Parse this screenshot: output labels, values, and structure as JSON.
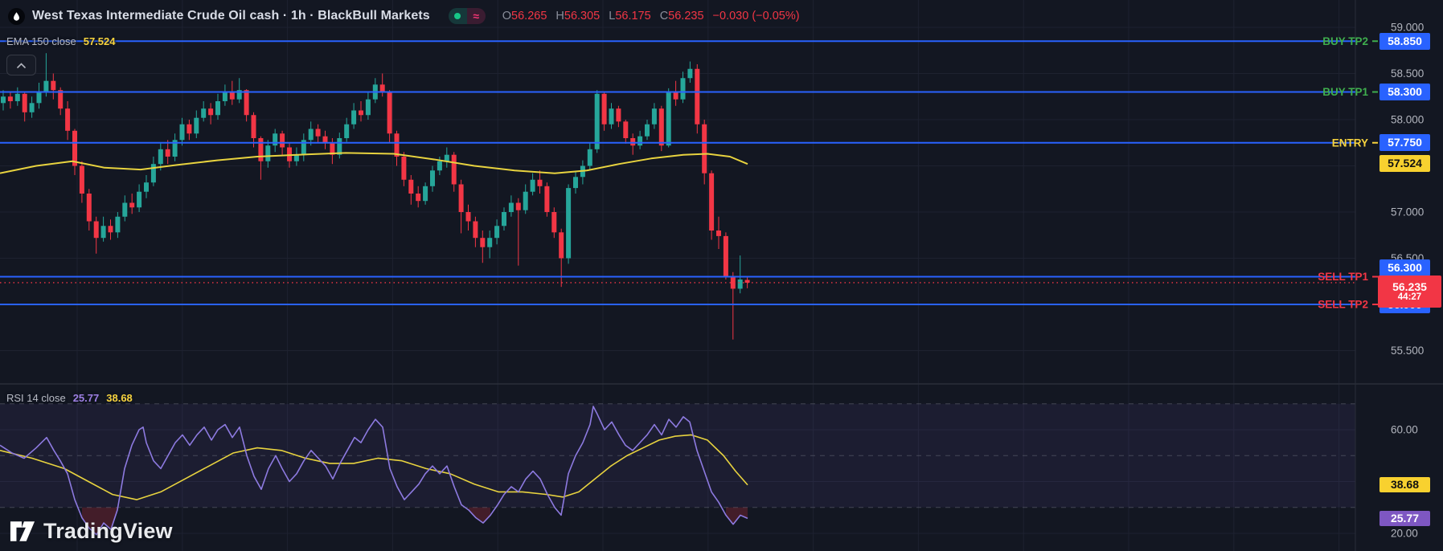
{
  "header": {
    "title": "West Texas Intermediate Crude Oil cash · 1h · BlackBull Markets",
    "market_open_dot": "green",
    "approx_symbol": "≈",
    "ohlc": {
      "o_label": "O",
      "o": "56.265",
      "h_label": "H",
      "h": "56.305",
      "l_label": "L",
      "l": "56.175",
      "c_label": "C",
      "c": "56.235",
      "change": "−0.030 (−0.05%)"
    }
  },
  "ema_legend": {
    "name": "EMA 150 close",
    "value": "57.524"
  },
  "rsi_legend": {
    "name": "RSI 14 close",
    "rsi_value": "25.77",
    "ma_value": "38.68"
  },
  "logo": {
    "text": "TradingView"
  },
  "price_axis": {
    "ticks": [
      {
        "text": "59.000",
        "price": 59.0
      },
      {
        "text": "58.500",
        "price": 58.5
      },
      {
        "text": "58.000",
        "price": 58.0
      },
      {
        "text": "57.000",
        "price": 57.0
      },
      {
        "text": "56.500",
        "price": 56.5
      },
      {
        "text": "55.500",
        "price": 55.5
      }
    ]
  },
  "rsi_axis": {
    "ticks": [
      {
        "text": "60.00",
        "value": 60
      },
      {
        "text": "20.00",
        "value": 20
      }
    ]
  },
  "levels": [
    {
      "id": "buy-tp2",
      "label": "BUY TP2",
      "price": 58.85,
      "axis_text": "58.850",
      "kind": "buy"
    },
    {
      "id": "buy-tp1",
      "label": "BUY TP1",
      "price": 58.3,
      "axis_text": "58.300",
      "kind": "buy"
    },
    {
      "id": "entry",
      "label": "ENTRY",
      "price": 57.75,
      "axis_text": "57.750",
      "kind": "entry"
    },
    {
      "id": "sell-tp1",
      "label": "SELL TP1",
      "price": 56.3,
      "axis_text": "56.300",
      "kind": "sell"
    },
    {
      "id": "sell-tp2",
      "label": "SELL TP2",
      "price": 56.0,
      "axis_text": "56.000",
      "kind": "sell"
    }
  ],
  "current_price": {
    "value": "56.235",
    "countdown": "44:27",
    "price": 56.235
  },
  "colors": {
    "bg": "#131722",
    "grid": "#1e2230",
    "up": "#26a69a",
    "down": "#f23645",
    "line_blue": "#2962ff",
    "buy_text": "#3fae4e",
    "sell_text": "#f23645",
    "entry_text": "#f7d33e",
    "yellow_line": "#e8d33f",
    "yellow_box_bg": "#f8d12f",
    "purple_line": "#8d7ae0",
    "purple_box_bg": "#7e57c2",
    "tick_text": "#b2b5be",
    "separator": "#2a2e39",
    "dashed_band": "#787b86",
    "band_fill": "rgba(136,106,234,0.08)",
    "oversold_fill": "rgba(242,54,69,0.22)",
    "current_dotted": "#f23645"
  },
  "chart_data": {
    "type": "candlestick",
    "symbol": "West Texas Intermediate Crude Oil cash",
    "interval": "1h",
    "broker": "BlackBull Markets",
    "price_axis_visible_range": [
      55.3,
      59.1
    ],
    "price_gridline_step": 0.5,
    "candles_ohlc": [
      [
        58.18,
        58.32,
        58.1,
        58.25
      ],
      [
        58.25,
        58.3,
        58.12,
        58.2
      ],
      [
        58.2,
        58.35,
        58.15,
        58.28
      ],
      [
        58.28,
        58.3,
        57.98,
        58.08
      ],
      [
        58.08,
        58.25,
        58.02,
        58.18
      ],
      [
        58.18,
        58.4,
        58.12,
        58.3
      ],
      [
        58.3,
        58.72,
        58.25,
        58.42
      ],
      [
        58.42,
        58.5,
        58.22,
        58.32
      ],
      [
        58.32,
        58.35,
        58.05,
        58.12
      ],
      [
        58.12,
        58.2,
        57.78,
        57.88
      ],
      [
        57.88,
        57.9,
        57.4,
        57.5
      ],
      [
        57.5,
        57.55,
        57.1,
        57.2
      ],
      [
        57.2,
        57.25,
        56.8,
        56.9
      ],
      [
        56.9,
        56.95,
        56.55,
        56.72
      ],
      [
        56.72,
        56.95,
        56.68,
        56.85
      ],
      [
        56.85,
        56.92,
        56.7,
        56.78
      ],
      [
        56.78,
        57.0,
        56.72,
        56.95
      ],
      [
        56.95,
        57.18,
        56.9,
        57.1
      ],
      [
        57.1,
        57.2,
        56.98,
        57.05
      ],
      [
        57.05,
        57.3,
        57.0,
        57.22
      ],
      [
        57.22,
        57.4,
        57.15,
        57.32
      ],
      [
        57.32,
        57.6,
        57.28,
        57.52
      ],
      [
        57.52,
        57.75,
        57.45,
        57.68
      ],
      [
        57.68,
        57.78,
        57.52,
        57.6
      ],
      [
        57.6,
        57.85,
        57.55,
        57.78
      ],
      [
        57.78,
        58.02,
        57.72,
        57.95
      ],
      [
        57.95,
        58.0,
        57.78,
        57.85
      ],
      [
        57.85,
        58.1,
        57.8,
        58.02
      ],
      [
        58.02,
        58.2,
        57.98,
        58.12
      ],
      [
        58.12,
        58.18,
        57.95,
        58.05
      ],
      [
        58.05,
        58.28,
        58.0,
        58.2
      ],
      [
        58.2,
        58.38,
        58.15,
        58.3
      ],
      [
        58.3,
        58.42,
        58.16,
        58.22
      ],
      [
        58.22,
        58.45,
        58.18,
        58.32
      ],
      [
        58.32,
        58.33,
        57.98,
        58.05
      ],
      [
        58.05,
        58.08,
        57.7,
        57.8
      ],
      [
        57.8,
        57.82,
        57.35,
        57.55
      ],
      [
        57.55,
        57.78,
        57.48,
        57.72
      ],
      [
        57.72,
        57.9,
        57.65,
        57.85
      ],
      [
        57.85,
        57.88,
        57.62,
        57.7
      ],
      [
        57.7,
        57.75,
        57.48,
        57.55
      ],
      [
        57.55,
        57.7,
        57.5,
        57.62
      ],
      [
        57.62,
        57.85,
        57.55,
        57.78
      ],
      [
        57.78,
        57.98,
        57.72,
        57.9
      ],
      [
        57.9,
        57.95,
        57.75,
        57.82
      ],
      [
        57.82,
        57.88,
        57.68,
        57.75
      ],
      [
        57.75,
        57.8,
        57.52,
        57.62
      ],
      [
        57.62,
        57.86,
        57.58,
        57.8
      ],
      [
        57.8,
        58.02,
        57.76,
        57.95
      ],
      [
        57.95,
        58.18,
        57.9,
        58.1
      ],
      [
        58.1,
        58.2,
        57.98,
        58.05
      ],
      [
        58.05,
        58.3,
        58.0,
        58.22
      ],
      [
        58.22,
        58.45,
        58.18,
        58.38
      ],
      [
        58.38,
        58.5,
        58.25,
        58.3
      ],
      [
        58.3,
        58.32,
        57.75,
        57.85
      ],
      [
        57.85,
        57.88,
        57.5,
        57.6
      ],
      [
        57.6,
        57.65,
        57.28,
        57.35
      ],
      [
        57.35,
        57.4,
        57.08,
        57.2
      ],
      [
        57.2,
        57.28,
        57.05,
        57.12
      ],
      [
        57.12,
        57.32,
        57.08,
        57.28
      ],
      [
        57.28,
        57.5,
        57.22,
        57.45
      ],
      [
        57.45,
        57.6,
        57.4,
        57.55
      ],
      [
        57.55,
        57.7,
        57.48,
        57.62
      ],
      [
        57.62,
        57.65,
        57.22,
        57.3
      ],
      [
        57.3,
        57.35,
        56.77,
        57.0
      ],
      [
        57.0,
        57.08,
        56.8,
        56.9
      ],
      [
        56.9,
        56.95,
        56.62,
        56.72
      ],
      [
        56.72,
        56.8,
        56.45,
        56.62
      ],
      [
        56.62,
        56.8,
        56.5,
        56.72
      ],
      [
        56.72,
        56.92,
        56.65,
        56.85
      ],
      [
        56.85,
        57.05,
        56.8,
        57.0
      ],
      [
        57.0,
        57.18,
        56.95,
        57.1
      ],
      [
        57.1,
        57.15,
        56.42,
        57.02
      ],
      [
        57.02,
        57.3,
        56.98,
        57.22
      ],
      [
        57.22,
        57.42,
        57.18,
        57.35
      ],
      [
        57.35,
        57.45,
        57.2,
        57.28
      ],
      [
        57.28,
        57.32,
        56.95,
        57.0
      ],
      [
        57.0,
        57.05,
        56.72,
        56.78
      ],
      [
        56.78,
        56.82,
        56.19,
        56.5
      ],
      [
        56.5,
        57.3,
        56.44,
        57.26
      ],
      [
        57.26,
        57.44,
        57.2,
        57.38
      ],
      [
        57.38,
        57.56,
        57.3,
        57.5
      ],
      [
        57.5,
        57.75,
        57.45,
        57.68
      ],
      [
        57.68,
        58.32,
        57.64,
        58.28
      ],
      [
        58.28,
        58.3,
        57.88,
        57.95
      ],
      [
        57.95,
        58.18,
        57.9,
        58.12
      ],
      [
        58.12,
        58.15,
        57.92,
        57.98
      ],
      [
        57.98,
        58.0,
        57.74,
        57.8
      ],
      [
        57.8,
        57.85,
        57.62,
        57.72
      ],
      [
        57.72,
        57.88,
        57.68,
        57.82
      ],
      [
        57.82,
        58.0,
        57.78,
        57.95
      ],
      [
        57.95,
        58.18,
        57.9,
        58.12
      ],
      [
        58.12,
        58.15,
        57.66,
        57.72
      ],
      [
        57.72,
        58.34,
        57.7,
        58.3
      ],
      [
        58.3,
        58.42,
        58.15,
        58.22
      ],
      [
        58.22,
        58.52,
        58.18,
        58.45
      ],
      [
        58.45,
        58.63,
        58.4,
        58.55
      ],
      [
        58.55,
        58.6,
        57.85,
        57.95
      ],
      [
        57.95,
        58.0,
        57.3,
        57.42
      ],
      [
        57.42,
        57.45,
        56.7,
        56.8
      ],
      [
        56.8,
        56.95,
        56.6,
        56.74
      ],
      [
        56.74,
        56.78,
        56.27,
        56.3
      ],
      [
        56.3,
        56.35,
        55.62,
        56.17
      ],
      [
        56.17,
        56.53,
        56.12,
        56.27
      ],
      [
        56.265,
        56.305,
        56.175,
        56.235
      ]
    ],
    "ema_150": {
      "current": 57.524,
      "points": [
        [
          0,
          57.42
        ],
        [
          45,
          57.5
        ],
        [
          90,
          57.55
        ],
        [
          130,
          57.48
        ],
        [
          175,
          57.46
        ],
        [
          220,
          57.51
        ],
        [
          270,
          57.56
        ],
        [
          320,
          57.6
        ],
        [
          370,
          57.62
        ],
        [
          430,
          57.64
        ],
        [
          490,
          57.63
        ],
        [
          540,
          57.57
        ],
        [
          590,
          57.5
        ],
        [
          640,
          57.45
        ],
        [
          690,
          57.42
        ],
        [
          730,
          57.45
        ],
        [
          770,
          57.52
        ],
        [
          810,
          57.58
        ],
        [
          850,
          57.62
        ],
        [
          880,
          57.63
        ],
        [
          908,
          57.6
        ],
        [
          930,
          57.52
        ]
      ]
    },
    "rsi_pane": {
      "bands": [
        70,
        50,
        30
      ],
      "axis_visible_range": [
        13,
        77
      ],
      "current_rsi": 25.77,
      "current_ma": 38.68,
      "rsi": [
        [
          0,
          54
        ],
        [
          15,
          51
        ],
        [
          30,
          49
        ],
        [
          45,
          53
        ],
        [
          58,
          57
        ],
        [
          67,
          52
        ],
        [
          75,
          48
        ],
        [
          84,
          43
        ],
        [
          93,
          33
        ],
        [
          102,
          26
        ],
        [
          111,
          22
        ],
        [
          120,
          19.5
        ],
        [
          129,
          24
        ],
        [
          138,
          21.5
        ],
        [
          146,
          29
        ],
        [
          155,
          45
        ],
        [
          164,
          54
        ],
        [
          173,
          60
        ],
        [
          178,
          61
        ],
        [
          182,
          55
        ],
        [
          191,
          48
        ],
        [
          200,
          45
        ],
        [
          209,
          50
        ],
        [
          218,
          55
        ],
        [
          227,
          58
        ],
        [
          236,
          54
        ],
        [
          245,
          58
        ],
        [
          254,
          61
        ],
        [
          263,
          56
        ],
        [
          271,
          60
        ],
        [
          280,
          62
        ],
        [
          289,
          57
        ],
        [
          298,
          61
        ],
        [
          307,
          50
        ],
        [
          316,
          42
        ],
        [
          325,
          37
        ],
        [
          334,
          45
        ],
        [
          343,
          50
        ],
        [
          351,
          45
        ],
        [
          360,
          40
        ],
        [
          369,
          43
        ],
        [
          378,
          48
        ],
        [
          387,
          52
        ],
        [
          396,
          49
        ],
        [
          405,
          46
        ],
        [
          414,
          41
        ],
        [
          423,
          47
        ],
        [
          432,
          52
        ],
        [
          441,
          57
        ],
        [
          449,
          55
        ],
        [
          458,
          60
        ],
        [
          467,
          64
        ],
        [
          476,
          61
        ],
        [
          485,
          45
        ],
        [
          494,
          38
        ],
        [
          503,
          33
        ],
        [
          512,
          36
        ],
        [
          521,
          39
        ],
        [
          529,
          43
        ],
        [
          538,
          46
        ],
        [
          547,
          43
        ],
        [
          556,
          46
        ],
        [
          565,
          38
        ],
        [
          574,
          31
        ],
        [
          583,
          29
        ],
        [
          592,
          26
        ],
        [
          601,
          24
        ],
        [
          610,
          27
        ],
        [
          619,
          31
        ],
        [
          627,
          35
        ],
        [
          636,
          38
        ],
        [
          645,
          36
        ],
        [
          654,
          41
        ],
        [
          663,
          44
        ],
        [
          672,
          41
        ],
        [
          681,
          35
        ],
        [
          690,
          30
        ],
        [
          698,
          27
        ],
        [
          707,
          43
        ],
        [
          716,
          50
        ],
        [
          725,
          55
        ],
        [
          734,
          62
        ],
        [
          738,
          69
        ],
        [
          743,
          66
        ],
        [
          752,
          60
        ],
        [
          761,
          63
        ],
        [
          770,
          58
        ],
        [
          778,
          54
        ],
        [
          787,
          52
        ],
        [
          796,
          55
        ],
        [
          805,
          58
        ],
        [
          814,
          62
        ],
        [
          823,
          58
        ],
        [
          832,
          64
        ],
        [
          841,
          61
        ],
        [
          850,
          65
        ],
        [
          858,
          63
        ],
        [
          867,
          52
        ],
        [
          876,
          44
        ],
        [
          885,
          36
        ],
        [
          894,
          32
        ],
        [
          903,
          27
        ],
        [
          912,
          23.5
        ],
        [
          921,
          27
        ],
        [
          930,
          25.77
        ]
      ],
      "ma": [
        [
          0,
          52
        ],
        [
          40,
          49
        ],
        [
          80,
          45
        ],
        [
          110,
          40
        ],
        [
          140,
          35
        ],
        [
          170,
          33
        ],
        [
          200,
          36
        ],
        [
          230,
          41
        ],
        [
          260,
          46
        ],
        [
          290,
          51
        ],
        [
          320,
          53
        ],
        [
          350,
          52
        ],
        [
          380,
          49
        ],
        [
          410,
          47
        ],
        [
          440,
          47
        ],
        [
          470,
          49
        ],
        [
          500,
          48
        ],
        [
          530,
          45
        ],
        [
          560,
          43
        ],
        [
          590,
          39
        ],
        [
          620,
          36
        ],
        [
          650,
          36
        ],
        [
          680,
          35
        ],
        [
          700,
          34
        ],
        [
          720,
          36
        ],
        [
          740,
          41
        ],
        [
          760,
          46
        ],
        [
          780,
          50
        ],
        [
          800,
          53
        ],
        [
          820,
          56
        ],
        [
          840,
          57.5
        ],
        [
          860,
          58
        ],
        [
          880,
          56
        ],
        [
          900,
          50
        ],
        [
          915,
          44
        ],
        [
          930,
          38.68
        ]
      ]
    }
  }
}
